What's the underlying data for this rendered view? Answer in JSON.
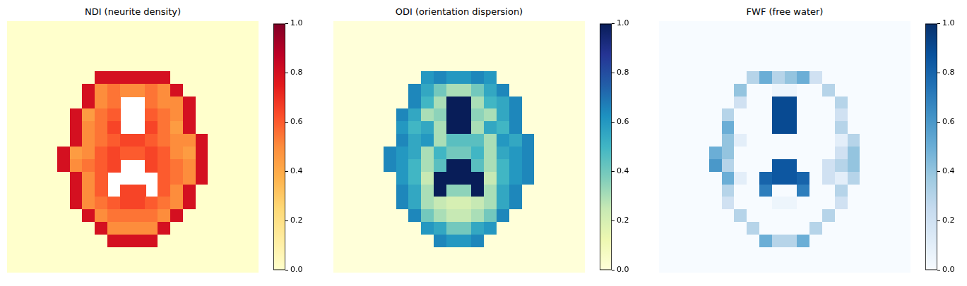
{
  "chart_data": [
    {
      "type": "heatmap",
      "title": "NDI (neurite density)",
      "color": "YlOrRd",
      "tick_labels": false,
      "colorbar": {
        "range": [
          0,
          1
        ],
        "ticks": [
          {
            "value": 0,
            "label": "0.0"
          },
          {
            "value": 0.2,
            "label": "0.2"
          },
          {
            "value": 0.4,
            "label": "0.4"
          },
          {
            "value": 0.6,
            "label": "0.6"
          },
          {
            "value": 0.8,
            "label": "0.8"
          },
          {
            "value": 1,
            "label": "1.0"
          }
        ]
      },
      "cells": [
        [
          0,
          0,
          0,
          0,
          0,
          0,
          0,
          0,
          0,
          0,
          0,
          0,
          0,
          0,
          0,
          0,
          0,
          0,
          0,
          0
        ],
        [
          0,
          0,
          0,
          0,
          0,
          0,
          0,
          0,
          0,
          0,
          0,
          0,
          0,
          0,
          0,
          0,
          0,
          0,
          0,
          0
        ],
        [
          0,
          0,
          0,
          0,
          0,
          0,
          0,
          0,
          0,
          0,
          0,
          0,
          0,
          0,
          0,
          0,
          0,
          0,
          0,
          0
        ],
        [
          0,
          0,
          0,
          0,
          0,
          0,
          0,
          0,
          0,
          0,
          0,
          0,
          0,
          0,
          0,
          0,
          0,
          0,
          0,
          0
        ],
        [
          0,
          0,
          0,
          0,
          0,
          0,
          0,
          0.8,
          0.8,
          0.8,
          0.8,
          0.8,
          0.8,
          0,
          0,
          0,
          0,
          0,
          0,
          0
        ],
        [
          0,
          0,
          0,
          0,
          0,
          0,
          0.8,
          0.5,
          0.55,
          0.5,
          0.5,
          0.55,
          0.5,
          0.8,
          0,
          0,
          0,
          0,
          0,
          0
        ],
        [
          0,
          0,
          0,
          0,
          0,
          0,
          0.8,
          0.5,
          0.55,
          null,
          null,
          0.55,
          0.5,
          0.5,
          0.8,
          0,
          0,
          0,
          0,
          0
        ],
        [
          0,
          0,
          0,
          0,
          0,
          0.8,
          0.45,
          0.55,
          0.6,
          null,
          null,
          0.6,
          0.55,
          0.5,
          0.8,
          0,
          0,
          0,
          0,
          0
        ],
        [
          0,
          0,
          0,
          0,
          0,
          0.8,
          0.5,
          0.55,
          0.65,
          null,
          null,
          0.65,
          0.55,
          0.45,
          0.8,
          0,
          0,
          0,
          0,
          0
        ],
        [
          0,
          0,
          0,
          0,
          0,
          0.8,
          0.5,
          0.55,
          0.6,
          0.65,
          0.65,
          0.6,
          0.55,
          0.5,
          0.5,
          0.8,
          0,
          0,
          0,
          0
        ],
        [
          0,
          0,
          0,
          0,
          0.8,
          0.45,
          0.5,
          0.6,
          0.65,
          0.6,
          0.6,
          0.65,
          0.6,
          0.5,
          0.45,
          0.8,
          0,
          0,
          0,
          0
        ],
        [
          0,
          0,
          0,
          0,
          0.8,
          0.5,
          0.55,
          0.6,
          0.65,
          null,
          null,
          0.65,
          0.6,
          0.55,
          0.5,
          0.8,
          0,
          0,
          0,
          0
        ],
        [
          0,
          0,
          0,
          0,
          0,
          0.8,
          0.5,
          0.6,
          null,
          null,
          null,
          null,
          0.6,
          0.55,
          0.5,
          0.8,
          0,
          0,
          0,
          0
        ],
        [
          0,
          0,
          0,
          0,
          0,
          0.8,
          0.5,
          0.6,
          null,
          0.65,
          0.65,
          null,
          0.6,
          0.5,
          0.8,
          0,
          0,
          0,
          0,
          0
        ],
        [
          0,
          0,
          0,
          0,
          0,
          0.8,
          0.5,
          0.55,
          0.6,
          0.65,
          0.65,
          0.6,
          0.55,
          0.5,
          0.8,
          0,
          0,
          0,
          0,
          0
        ],
        [
          0,
          0,
          0,
          0,
          0,
          0,
          0.8,
          0.5,
          0.55,
          0.55,
          0.55,
          0.55,
          0.5,
          0.8,
          0,
          0,
          0,
          0,
          0,
          0
        ],
        [
          0,
          0,
          0,
          0,
          0,
          0,
          0,
          0.8,
          0.5,
          0.5,
          0.5,
          0.5,
          0.8,
          0,
          0,
          0,
          0,
          0,
          0,
          0
        ],
        [
          0,
          0,
          0,
          0,
          0,
          0,
          0,
          0,
          0.8,
          0.8,
          0.8,
          0.8,
          0,
          0,
          0,
          0,
          0,
          0,
          0,
          0
        ],
        [
          0,
          0,
          0,
          0,
          0,
          0,
          0,
          0,
          0,
          0,
          0,
          0,
          0,
          0,
          0,
          0,
          0,
          0,
          0,
          0
        ],
        [
          0,
          0,
          0,
          0,
          0,
          0,
          0,
          0,
          0,
          0,
          0,
          0,
          0,
          0,
          0,
          0,
          0,
          0,
          0,
          0
        ]
      ]
    },
    {
      "type": "heatmap",
      "title": "ODI (orientation dispersion)",
      "color": "YlGnBu",
      "tick_labels": false,
      "colorbar": {
        "range": [
          0,
          1
        ],
        "ticks": [
          {
            "value": 0,
            "label": "0.0"
          },
          {
            "value": 0.2,
            "label": "0.2"
          },
          {
            "value": 0.4,
            "label": "0.4"
          },
          {
            "value": 0.6,
            "label": "0.6"
          },
          {
            "value": 0.8,
            "label": "0.8"
          },
          {
            "value": 1,
            "label": "1.0"
          }
        ]
      },
      "cells": [
        [
          0,
          0,
          0,
          0,
          0,
          0,
          0,
          0,
          0,
          0,
          0,
          0,
          0,
          0,
          0,
          0,
          0,
          0,
          0,
          0
        ],
        [
          0,
          0,
          0,
          0,
          0,
          0,
          0,
          0,
          0,
          0,
          0,
          0,
          0,
          0,
          0,
          0,
          0,
          0,
          0,
          0
        ],
        [
          0,
          0,
          0,
          0,
          0,
          0,
          0,
          0,
          0,
          0,
          0,
          0,
          0,
          0,
          0,
          0,
          0,
          0,
          0,
          0
        ],
        [
          0,
          0,
          0,
          0,
          0,
          0,
          0,
          0,
          0,
          0,
          0,
          0,
          0,
          0,
          0,
          0,
          0,
          0,
          0,
          0
        ],
        [
          0,
          0,
          0,
          0,
          0,
          0,
          0,
          0.6,
          0.65,
          0.6,
          0.6,
          0.65,
          0.6,
          0,
          0,
          0,
          0,
          0,
          0,
          0
        ],
        [
          0,
          0,
          0,
          0,
          0,
          0,
          0.65,
          0.55,
          0.4,
          0.3,
          0.3,
          0.4,
          0.55,
          0.65,
          0,
          0,
          0,
          0,
          0,
          0
        ],
        [
          0,
          0,
          0,
          0,
          0,
          0,
          0.65,
          0.5,
          0.3,
          1,
          1,
          0.3,
          0.5,
          0.55,
          0.65,
          0,
          0,
          0,
          0,
          0
        ],
        [
          0,
          0,
          0,
          0,
          0,
          0.65,
          0.55,
          0.3,
          0.35,
          1,
          1,
          0.35,
          0.3,
          0.55,
          0.65,
          0,
          0,
          0,
          0,
          0
        ],
        [
          0,
          0,
          0,
          0,
          0,
          0.6,
          0.5,
          0.55,
          0.3,
          1,
          1,
          0.3,
          0.55,
          0.5,
          0.65,
          0,
          0,
          0,
          0,
          0
        ],
        [
          0,
          0,
          0,
          0,
          0,
          0.65,
          0.55,
          0.6,
          0.3,
          0.45,
          0.45,
          0.45,
          0.3,
          0.6,
          0.55,
          0.65,
          0,
          0,
          0,
          0
        ],
        [
          0,
          0,
          0,
          0,
          0.65,
          0.6,
          0.55,
          0.3,
          0.5,
          0.4,
          0.4,
          0.5,
          0.3,
          0.55,
          0.6,
          0.65,
          0,
          0,
          0,
          0
        ],
        [
          0,
          0,
          0,
          0,
          0.65,
          0.6,
          0.5,
          0.3,
          0.45,
          1,
          1,
          0.45,
          0.3,
          0.5,
          0.6,
          0.65,
          0,
          0,
          0,
          0
        ],
        [
          0,
          0,
          0,
          0,
          0,
          0.6,
          0.5,
          0.25,
          1,
          1,
          1,
          1,
          0.25,
          0.5,
          0.6,
          0.65,
          0,
          0,
          0,
          0
        ],
        [
          0,
          0,
          0,
          0,
          0,
          0.65,
          0.55,
          0.3,
          1,
          0.35,
          0.35,
          1,
          0.3,
          0.55,
          0.65,
          0,
          0,
          0,
          0,
          0
        ],
        [
          0,
          0,
          0,
          0,
          0,
          0.65,
          0.55,
          0.3,
          0.25,
          0.2,
          0.2,
          0.25,
          0.3,
          0.55,
          0.65,
          0,
          0,
          0,
          0,
          0
        ],
        [
          0,
          0,
          0,
          0,
          0,
          0,
          0.65,
          0.4,
          0.3,
          0.25,
          0.25,
          0.3,
          0.4,
          0.65,
          0,
          0,
          0,
          0,
          0,
          0
        ],
        [
          0,
          0,
          0,
          0,
          0,
          0,
          0,
          0.6,
          0.55,
          0.4,
          0.4,
          0.55,
          0.6,
          0,
          0,
          0,
          0,
          0,
          0,
          0
        ],
        [
          0,
          0,
          0,
          0,
          0,
          0,
          0,
          0,
          0.65,
          0.6,
          0.6,
          0.65,
          0,
          0,
          0,
          0,
          0,
          0,
          0,
          0
        ],
        [
          0,
          0,
          0,
          0,
          0,
          0,
          0,
          0,
          0,
          0,
          0,
          0,
          0,
          0,
          0,
          0,
          0,
          0,
          0,
          0
        ],
        [
          0,
          0,
          0,
          0,
          0,
          0,
          0,
          0,
          0,
          0,
          0,
          0,
          0,
          0,
          0,
          0,
          0,
          0,
          0,
          0
        ]
      ]
    },
    {
      "type": "heatmap",
      "title": "FWF (free water)",
      "color": "Blues",
      "tick_labels": false,
      "colorbar": {
        "range": [
          0,
          1
        ],
        "ticks": [
          {
            "value": 0,
            "label": "0.0"
          },
          {
            "value": 0.2,
            "label": "0.2"
          },
          {
            "value": 0.4,
            "label": "0.4"
          },
          {
            "value": 0.6,
            "label": "0.6"
          },
          {
            "value": 0.8,
            "label": "0.8"
          },
          {
            "value": 1,
            "label": "1.0"
          }
        ]
      },
      "cells": [
        [
          0,
          0,
          0,
          0,
          0,
          0,
          0,
          0,
          0,
          0,
          0,
          0,
          0,
          0,
          0,
          0,
          0,
          0,
          0,
          0
        ],
        [
          0,
          0,
          0,
          0,
          0,
          0,
          0,
          0,
          0,
          0,
          0,
          0,
          0,
          0,
          0,
          0,
          0,
          0,
          0,
          0
        ],
        [
          0,
          0,
          0,
          0,
          0,
          0,
          0,
          0,
          0,
          0,
          0,
          0,
          0,
          0,
          0,
          0,
          0,
          0,
          0,
          0
        ],
        [
          0,
          0,
          0,
          0,
          0,
          0,
          0,
          0,
          0,
          0,
          0,
          0,
          0,
          0,
          0,
          0,
          0,
          0,
          0,
          0
        ],
        [
          0,
          0,
          0,
          0,
          0,
          0,
          0,
          0.3,
          0.5,
          0.3,
          0.4,
          0.5,
          0.2,
          0,
          0,
          0,
          0,
          0,
          0,
          0
        ],
        [
          0,
          0,
          0,
          0,
          0,
          0,
          0.4,
          0,
          0,
          0.05,
          0.05,
          0,
          0,
          0.3,
          0,
          0,
          0,
          0,
          0,
          0
        ],
        [
          0,
          0,
          0,
          0,
          0,
          0,
          0.2,
          0,
          0,
          0.9,
          0.9,
          0,
          0,
          0,
          0.3,
          0,
          0,
          0,
          0,
          0
        ],
        [
          0,
          0,
          0,
          0,
          0,
          0.3,
          0,
          0,
          0,
          0.9,
          0.9,
          0,
          0,
          0,
          0.2,
          0,
          0,
          0,
          0,
          0
        ],
        [
          0,
          0,
          0,
          0,
          0,
          0.5,
          0,
          0,
          0,
          0.9,
          0.9,
          0,
          0,
          0,
          0.3,
          0,
          0,
          0,
          0,
          0
        ],
        [
          0,
          0,
          0,
          0,
          0,
          0.4,
          0.1,
          0,
          0,
          0,
          0,
          0,
          0,
          0,
          0.1,
          0.3,
          0,
          0,
          0,
          0
        ],
        [
          0,
          0,
          0,
          0,
          0.5,
          0.4,
          0,
          0,
          0,
          0,
          0,
          0,
          0,
          0,
          0.2,
          0.4,
          0,
          0,
          0,
          0
        ],
        [
          0,
          0,
          0,
          0,
          0.6,
          0.3,
          0,
          0,
          0,
          0.85,
          0.85,
          0,
          0,
          0.2,
          0.3,
          0.4,
          0,
          0,
          0,
          0
        ],
        [
          0,
          0,
          0,
          0,
          0,
          0.5,
          0.1,
          0,
          0.8,
          0.85,
          0.85,
          0.8,
          0,
          0.2,
          0.1,
          0.3,
          0,
          0,
          0,
          0
        ],
        [
          0,
          0,
          0,
          0,
          0,
          0.3,
          0,
          0,
          0.7,
          0,
          0,
          0.7,
          0,
          0,
          0.3,
          0,
          0,
          0,
          0,
          0
        ],
        [
          0,
          0,
          0,
          0,
          0,
          0.2,
          0,
          0,
          0,
          0.05,
          0.05,
          0,
          0,
          0,
          0.2,
          0,
          0,
          0,
          0,
          0
        ],
        [
          0,
          0,
          0,
          0,
          0,
          0,
          0.3,
          0,
          0,
          0,
          0,
          0,
          0,
          0.3,
          0,
          0,
          0,
          0,
          0,
          0
        ],
        [
          0,
          0,
          0,
          0,
          0,
          0,
          0,
          0.3,
          0,
          0,
          0,
          0,
          0.3,
          0,
          0,
          0,
          0,
          0,
          0,
          0
        ],
        [
          0,
          0,
          0,
          0,
          0,
          0,
          0,
          0,
          0.5,
          0.3,
          0.3,
          0.5,
          0,
          0,
          0,
          0,
          0,
          0,
          0,
          0
        ],
        [
          0,
          0,
          0,
          0,
          0,
          0,
          0,
          0,
          0,
          0,
          0,
          0,
          0,
          0,
          0,
          0,
          0,
          0,
          0,
          0
        ],
        [
          0,
          0,
          0,
          0,
          0,
          0,
          0,
          0,
          0,
          0,
          0,
          0,
          0,
          0,
          0,
          0,
          0,
          0,
          0,
          0
        ]
      ]
    }
  ]
}
